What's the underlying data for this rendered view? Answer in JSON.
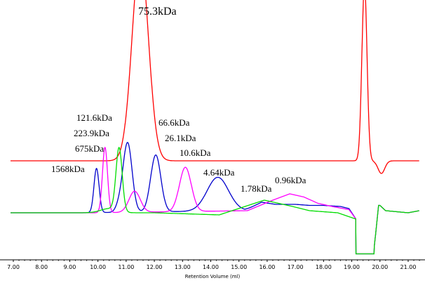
{
  "chart_data": {
    "type": "line",
    "xlabel": "Retention Volume (ml)",
    "ylabel": "",
    "xlim": [
      6.9,
      21.4
    ],
    "grid": false,
    "x_ticks": [
      "7.00",
      "8.00",
      "9.00",
      "10.00",
      "11.00",
      "12.00",
      "13.00",
      "14.00",
      "15.00",
      "16.00",
      "17.00",
      "18.00",
      "19.00",
      "20.00",
      "21.00"
    ],
    "annotations": [
      {
        "text": "75.3kDa",
        "x": 11.45,
        "size": "large"
      },
      {
        "text": "121.6kDa",
        "x": 10.05
      },
      {
        "text": "223.9kDa",
        "x": 9.9
      },
      {
        "text": "675kDa",
        "x": 9.9
      },
      {
        "text": "1568kDa",
        "x": 9.9
      },
      {
        "text": "66.6kDa",
        "x": 12.2
      },
      {
        "text": "26.1kDa",
        "x": 12.5
      },
      {
        "text": "10.6kDa",
        "x": 12.8
      },
      {
        "text": "4.64kDa",
        "x": 14.2
      },
      {
        "text": "1.78kDa",
        "x": 15.9
      },
      {
        "text": "0.96kDa",
        "x": 16.8
      }
    ],
    "series": [
      {
        "color": "#ff0000",
        "description": "upper trace",
        "baseline": 0.51,
        "tail": [],
        "peaks": [
          {
            "center": 11.5,
            "sigma": 0.29,
            "height": 0.97
          },
          {
            "center": 19.45,
            "sigma": 0.09,
            "height": 0.84
          },
          {
            "center": 20.05,
            "sigma": 0.12,
            "height": -0.06
          }
        ]
      },
      {
        "color": "#0000cc",
        "description": "middle trace",
        "baseline": 0.0,
        "tail": [
          [
            6.9,
            0.0
          ],
          [
            9.5,
            0.0
          ],
          [
            15.2,
            0.01
          ],
          [
            15.8,
            0.05
          ],
          [
            16.3,
            0.04
          ],
          [
            17.0,
            0.04
          ],
          [
            17.5,
            0.035
          ],
          [
            18.0,
            0.035
          ],
          [
            18.6,
            0.03
          ],
          [
            18.9,
            0.02
          ],
          [
            19.15,
            -0.03
          ]
        ],
        "peaks": [
          {
            "center": 9.95,
            "sigma": 0.09,
            "height": 0.21
          },
          {
            "center": 11.05,
            "sigma": 0.16,
            "height": 0.33
          },
          {
            "center": 12.05,
            "sigma": 0.18,
            "height": 0.27
          },
          {
            "center": 14.25,
            "sigma": 0.38,
            "height": 0.16
          },
          {
            "center": 10.75,
            "sigma": 0.12,
            "height": 0.03
          }
        ]
      },
      {
        "color": "#ff00ff",
        "description": "middle trace",
        "baseline": 0.0,
        "tail": [
          [
            6.9,
            0.0
          ],
          [
            10.0,
            0.0
          ],
          [
            15.3,
            0.01
          ],
          [
            16.2,
            0.06
          ],
          [
            16.8,
            0.09
          ],
          [
            17.3,
            0.075
          ],
          [
            17.8,
            0.045
          ],
          [
            18.3,
            0.03
          ],
          [
            18.9,
            0.015
          ],
          [
            19.15,
            -0.03
          ]
        ],
        "peaks": [
          {
            "center": 10.25,
            "sigma": 0.09,
            "height": 0.31
          },
          {
            "center": 11.3,
            "sigma": 0.2,
            "height": 0.1
          },
          {
            "center": 13.1,
            "sigma": 0.21,
            "height": 0.21
          }
        ]
      },
      {
        "color": "#00dd00",
        "description": "middle trace",
        "baseline": 0.0,
        "tail": [
          [
            6.9,
            0.0
          ],
          [
            10.3,
            0.0
          ],
          [
            12.0,
            0.0
          ],
          [
            14.3,
            -0.01
          ],
          [
            15.9,
            0.06
          ],
          [
            16.9,
            0.03
          ],
          [
            17.5,
            0.01
          ],
          [
            18.5,
            0.0
          ],
          [
            19.15,
            -0.03
          ]
        ],
        "peaks": [
          {
            "center": 10.75,
            "sigma": 0.11,
            "height": 0.3
          },
          {
            "center": 10.4,
            "sigma": 0.3,
            "height": 0.02
          }
        ]
      }
    ],
    "system_dip": {
      "from": 19.15,
      "to": 19.8,
      "level": -0.195,
      "recover": [
        [
          20.0,
          0.035
        ],
        [
          20.2,
          0.01
        ],
        [
          21.0,
          0.0
        ],
        [
          21.4,
          0.01
        ]
      ]
    }
  }
}
